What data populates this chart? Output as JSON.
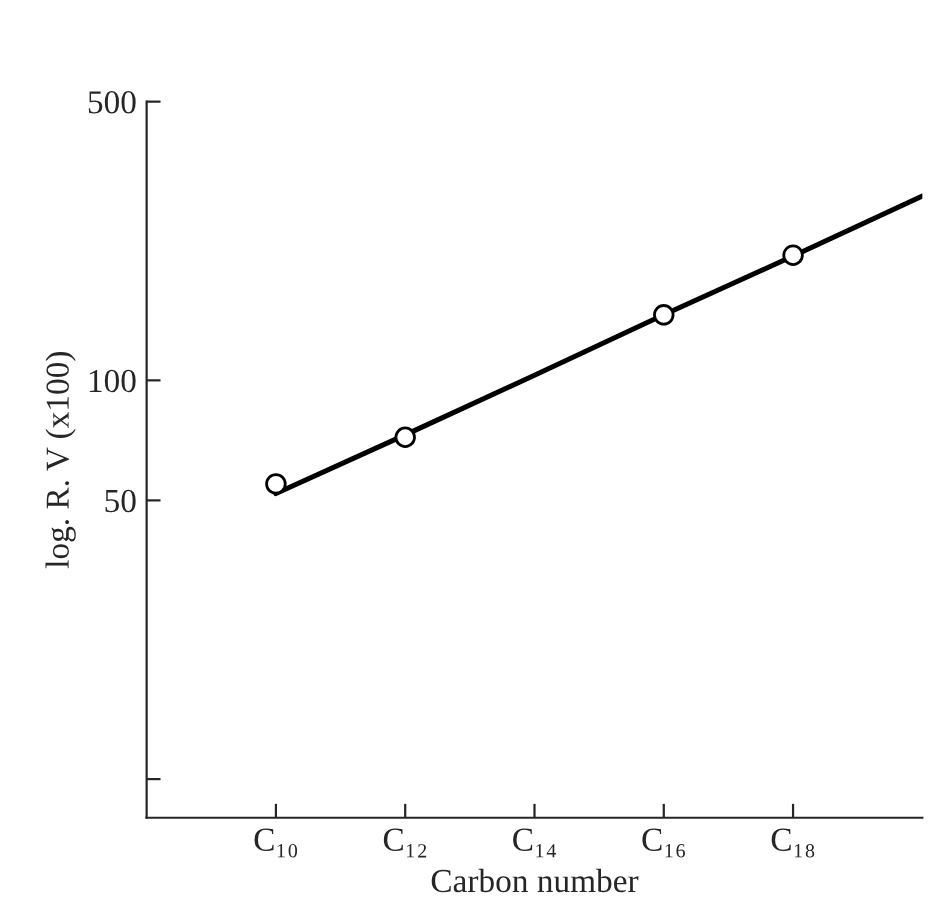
{
  "chart_data": {
    "type": "scatter",
    "xlabel": "Carbon number",
    "ylabel": "log. R. V (x100)",
    "log": "y",
    "ylim": [
      8,
      500
    ],
    "categories": [
      null,
      "C₁₀",
      "C₁₂",
      "C₁₄",
      "C₁₆",
      "C₁₈",
      null
    ],
    "yticks": [
      {
        "value": 10,
        "label": null
      },
      50,
      100,
      500
    ],
    "series": [
      {
        "color": "#000000",
        "marker": "circle",
        "values": [
          null,
          55,
          72,
          null,
          146,
          206,
          null
        ]
      },
      {
        "type": "line",
        "color": "#000000",
        "line_style": "solid",
        "marker": "none",
        "values": [
          null,
          52,
          73,
          103,
          146,
          205,
          290
        ]
      }
    ]
  }
}
